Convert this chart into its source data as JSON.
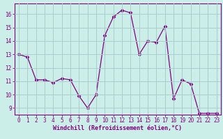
{
  "x": [
    0,
    1,
    2,
    3,
    4,
    5,
    6,
    7,
    8,
    9,
    10,
    11,
    12,
    13,
    14,
    15,
    16,
    17,
    18,
    19,
    20,
    21,
    22,
    23
  ],
  "y": [
    13.0,
    12.8,
    11.1,
    11.1,
    10.9,
    11.2,
    11.1,
    9.9,
    9.0,
    10.0,
    14.4,
    15.8,
    16.3,
    16.1,
    13.0,
    14.0,
    13.9,
    15.1,
    9.7,
    11.1,
    10.8,
    8.6,
    8.6,
    8.6
  ],
  "line_color": "#800080",
  "marker": "D",
  "marker_size": 2.5,
  "bg_color": "#cceee8",
  "grid_color": "#aacccc",
  "xlabel": "Windchill (Refroidissement éolien,°C)",
  "xlabel_color": "#800080",
  "tick_color": "#800080",
  "ylim": [
    8.5,
    16.8
  ],
  "yticks": [
    9,
    10,
    11,
    12,
    13,
    14,
    15,
    16
  ],
  "xlim": [
    -0.5,
    23.5
  ],
  "xticks": [
    0,
    1,
    2,
    3,
    4,
    5,
    6,
    7,
    8,
    9,
    10,
    11,
    12,
    13,
    14,
    15,
    16,
    17,
    18,
    19,
    20,
    21,
    22,
    23
  ]
}
